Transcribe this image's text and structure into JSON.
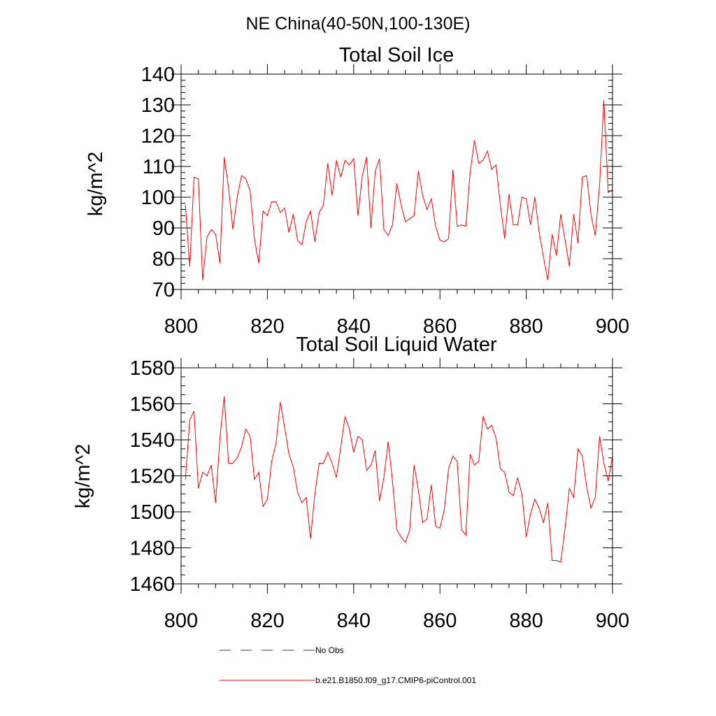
{
  "figure": {
    "title": "NE China(40-50N,100-130E)"
  },
  "legend": {
    "entries": [
      {
        "label": "No Obs",
        "color": "#33339a",
        "style": "dashed"
      },
      {
        "label": "b.e21.B1850.f09_g17.CMIP6-piControl.001",
        "color": "#ff0000",
        "style": "solid"
      }
    ]
  },
  "chart_data": [
    {
      "type": "line",
      "title": "Total Soil Ice",
      "xlabel": "",
      "ylabel": "kg/m^2",
      "xlim": [
        800,
        900
      ],
      "ylim": [
        70,
        140
      ],
      "xticks": [
        800,
        820,
        840,
        860,
        880,
        900
      ],
      "yticks": [
        70,
        80,
        90,
        100,
        110,
        120,
        130,
        140
      ],
      "grid": false,
      "series": [
        {
          "name": "b.e21.B1850.f09_g17.CMIP6-piControl.001",
          "color": "#ff0000",
          "x_start": 801,
          "x_step": 1,
          "values": [
            97.5,
            77.5,
            106.5,
            106,
            73,
            87,
            89.5,
            88,
            78.5,
            113,
            103,
            89.5,
            100,
            107,
            106,
            102,
            86.5,
            78.5,
            95.5,
            94,
            98.5,
            98.5,
            95,
            96.5,
            88.5,
            94.5,
            86,
            84.5,
            92,
            95.5,
            85.5,
            95,
            97.5,
            111,
            100.5,
            112,
            106.5,
            112,
            110.5,
            112.5,
            94,
            107,
            113,
            90,
            108.5,
            112.5,
            89.5,
            87.5,
            91,
            104.5,
            97.5,
            92,
            93,
            94,
            108.5,
            100.5,
            96,
            99.5,
            90.5,
            86,
            85.5,
            86.5,
            109,
            90.5,
            91,
            90.5,
            108,
            118.5,
            111,
            112,
            115,
            109,
            110.5,
            97.5,
            86.5,
            101,
            91,
            91,
            100,
            99.5,
            91,
            100,
            88.5,
            80.5,
            73,
            88,
            81,
            94.5,
            86,
            77.5,
            94.5,
            85,
            106.5,
            107,
            94.5,
            87.5,
            104,
            131.5,
            101.5,
            102.5
          ]
        }
      ]
    },
    {
      "type": "line",
      "title": "Total Soil Liquid Water",
      "xlabel": "",
      "ylabel": "kg/m^2",
      "xlim": [
        800,
        900
      ],
      "ylim": [
        1460,
        1580
      ],
      "xticks": [
        800,
        820,
        840,
        860,
        880,
        900
      ],
      "yticks": [
        1460,
        1480,
        1500,
        1520,
        1540,
        1560,
        1580
      ],
      "grid": false,
      "series": [
        {
          "name": "b.e21.B1850.f09_g17.CMIP6-piControl.001",
          "color": "#ff0000",
          "x_start": 801,
          "x_step": 1,
          "values": [
            1518,
            1551,
            1556,
            1513,
            1522,
            1520,
            1526,
            1505,
            1541,
            1564,
            1527,
            1527,
            1530,
            1536,
            1546,
            1542,
            1518,
            1522,
            1503,
            1507,
            1528,
            1538,
            1561,
            1547,
            1532,
            1525,
            1511,
            1505,
            1508,
            1485,
            1510,
            1527,
            1527,
            1533,
            1527,
            1519,
            1536,
            1553,
            1546,
            1533,
            1542,
            1540,
            1523,
            1526,
            1534,
            1506,
            1519,
            1539,
            1517,
            1490,
            1486,
            1483,
            1490,
            1526,
            1512,
            1494,
            1496,
            1515,
            1492,
            1491,
            1501,
            1524,
            1531,
            1528,
            1490,
            1487,
            1532,
            1526,
            1528,
            1553,
            1546,
            1548,
            1541,
            1524,
            1522,
            1511,
            1509,
            1519,
            1510,
            1486,
            1499,
            1507,
            1502,
            1494,
            1505,
            1473,
            1473,
            1472,
            1491,
            1513,
            1508,
            1535,
            1531,
            1514,
            1502,
            1508,
            1542,
            1527,
            1517,
            1531
          ]
        }
      ]
    }
  ]
}
